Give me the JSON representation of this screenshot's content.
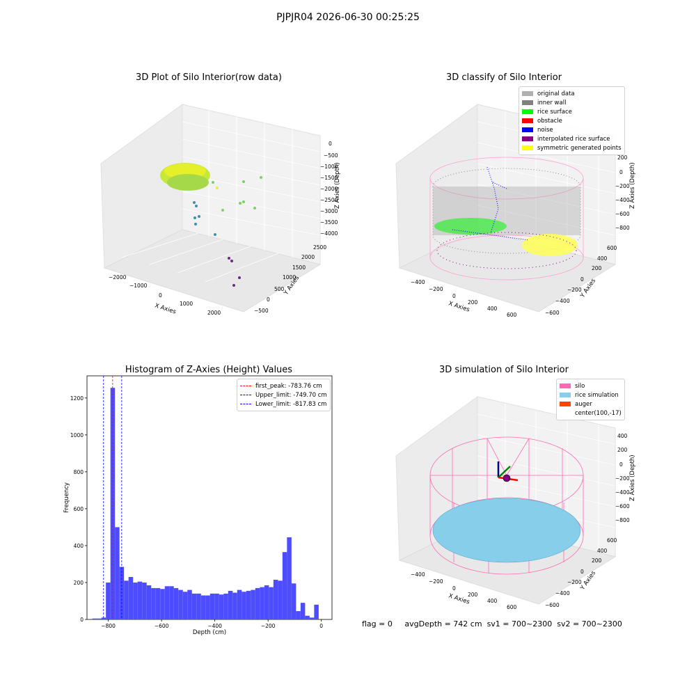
{
  "suptitle": "PJPJR04 2026-06-30 00:25:25",
  "panel1": {
    "title": "3D Plot of Silo Interior(row data)",
    "xlabel": "X Axies",
    "ylabel": "Y Axies",
    "zlabel": "Z Axies (Depth)",
    "xticks": [
      "−2000",
      "−1000",
      "0",
      "1000",
      "2000"
    ],
    "yticks": [
      "−500",
      "0",
      "500",
      "1000",
      "1500",
      "2000",
      "2500"
    ],
    "zticks": [
      "0",
      "−500",
      "−1000",
      "−1500",
      "−2000",
      "−2500",
      "−3000",
      "−3500",
      "−4000"
    ]
  },
  "panel2": {
    "title": "3D classify of Silo Interior",
    "xlabel": "X Axies",
    "ylabel": "Y Axies",
    "zlabel": "Z Axies (Depth)",
    "xticks": [
      "−400",
      "−200",
      "0",
      "200",
      "400",
      "600"
    ],
    "yticks": [
      "−600",
      "−400",
      "−200",
      "0",
      "200",
      "400",
      "600"
    ],
    "zticks": [
      "200",
      "0",
      "−200",
      "−400",
      "−600",
      "−800"
    ],
    "legend": [
      {
        "label": "original data",
        "color": "#b0b0b0"
      },
      {
        "label": "inner wall",
        "color": "#808080"
      },
      {
        "label": "rice surface",
        "color": "#00ff00"
      },
      {
        "label": "obstacle",
        "color": "#ff0000"
      },
      {
        "label": "noise",
        "color": "#0000ff"
      },
      {
        "label": "interpolated rice surface",
        "color": "#800080"
      },
      {
        "label": "symmetric generated points",
        "color": "#ffff00"
      }
    ]
  },
  "panel3": {
    "title": "Histogram of Z-Axies (Height) Values",
    "xlabel": "Depth (cm)",
    "ylabel": "Frequency",
    "legend": [
      {
        "label": "first_peak: -783.76 cm",
        "color": "#ff0000"
      },
      {
        "label": "Upper_limit: -749.70 cm",
        "color": "#0000ff"
      },
      {
        "label": "Lower_limit: -817.83 cm",
        "color": "#0000ff"
      }
    ]
  },
  "panel4": {
    "title": "3D simulation of Silo Interior",
    "xlabel": "X Axies",
    "ylabel": "Y Axies",
    "zlabel": "Z Axies (Depth)",
    "xticks": [
      "−400",
      "−200",
      "0",
      "200",
      "400",
      "600"
    ],
    "yticks": [
      "−600",
      "−400",
      "−200",
      "0",
      "200",
      "400",
      "600"
    ],
    "zticks": [
      "400",
      "200",
      "0",
      "−200",
      "−400",
      "−600",
      "−800"
    ],
    "legend": [
      {
        "label": "silo",
        "color": "#ff69b4"
      },
      {
        "label": "rice simulation",
        "color": "#87ceeb"
      },
      {
        "label": "auger",
        "color": "#ff4500"
      },
      {
        "label": "center(100,-17)",
        "color": ""
      }
    ]
  },
  "footer": {
    "flag": "flag = 0",
    "avg": "avgDepth = 742 cm",
    "sv1": "sv1 = 700~2300",
    "sv2": "sv2 = 700~2300"
  },
  "chart_data": [
    {
      "type": "scatter",
      "title": "3D Plot of Silo Interior(row data)",
      "xlabel": "X Axies",
      "ylabel": "Y Axies",
      "zlabel": "Z Axies (Depth)",
      "xlim": [
        -2300,
        2500
      ],
      "ylim": [
        -700,
        2700
      ],
      "zlim": [
        -4200,
        200
      ]
    },
    {
      "type": "scatter",
      "title": "3D classify of Silo Interior",
      "xlabel": "X Axies",
      "ylabel": "Y Axies",
      "zlabel": "Z Axies (Depth)",
      "xlim": [
        -500,
        700
      ],
      "ylim": [
        -700,
        700
      ],
      "zlim": [
        -900,
        300
      ],
      "series": [
        {
          "name": "original data"
        },
        {
          "name": "inner wall"
        },
        {
          "name": "rice surface"
        },
        {
          "name": "obstacle"
        },
        {
          "name": "noise"
        },
        {
          "name": "interpolated rice surface"
        },
        {
          "name": "symmetric generated points"
        }
      ]
    },
    {
      "type": "bar",
      "title": "Histogram of Z-Axies (Height) Values",
      "xlabel": "Depth (cm)",
      "ylabel": "Frequency",
      "xlim": [
        -880,
        40
      ],
      "ylim": [
        0,
        1320
      ],
      "xticks": [
        -800,
        -600,
        -400,
        -200,
        0
      ],
      "yticks": [
        0,
        200,
        400,
        600,
        800,
        1000,
        1200
      ],
      "bin_width": 17,
      "bin_starts": [
        -860,
        -843,
        -826,
        -809,
        -792,
        -775,
        -758,
        -741,
        -724,
        -707,
        -690,
        -673,
        -656,
        -639,
        -622,
        -605,
        -588,
        -571,
        -554,
        -537,
        -520,
        -503,
        -486,
        -469,
        -452,
        -435,
        -418,
        -401,
        -384,
        -367,
        -350,
        -333,
        -316,
        -299,
        -282,
        -265,
        -248,
        -231,
        -214,
        -197,
        -180,
        -163,
        -146,
        -129,
        -112,
        -95,
        -78,
        -61,
        -44,
        -27,
        -10
      ],
      "values": [
        5,
        5,
        10,
        200,
        1255,
        500,
        285,
        210,
        230,
        200,
        205,
        200,
        185,
        170,
        170,
        165,
        180,
        180,
        170,
        160,
        150,
        160,
        140,
        140,
        130,
        130,
        140,
        140,
        135,
        140,
        155,
        145,
        160,
        150,
        155,
        160,
        170,
        175,
        185,
        175,
        215,
        210,
        365,
        445,
        195,
        45,
        90,
        20,
        10,
        80,
        0
      ],
      "vlines": [
        {
          "name": "first_peak: -783.76 cm",
          "x": -783.76,
          "color": "#ff0000"
        },
        {
          "name": "Upper_limit: -749.70 cm",
          "x": -749.7,
          "color": "#0000ff"
        },
        {
          "name": "Lower_limit: -817.83 cm",
          "x": -817.83,
          "color": "#0000ff"
        }
      ],
      "bar_color": "#4d4dff",
      "legend_position": "top-right"
    },
    {
      "type": "scatter",
      "title": "3D simulation of Silo Interior",
      "xlabel": "X Axies",
      "ylabel": "Y Axies",
      "zlabel": "Z Axies (Depth)",
      "xlim": [
        -500,
        700
      ],
      "ylim": [
        -700,
        700
      ],
      "zlim": [
        -900,
        500
      ],
      "series": [
        {
          "name": "silo"
        },
        {
          "name": "rice simulation"
        },
        {
          "name": "auger"
        },
        {
          "name": "center(100,-17)"
        }
      ]
    }
  ]
}
